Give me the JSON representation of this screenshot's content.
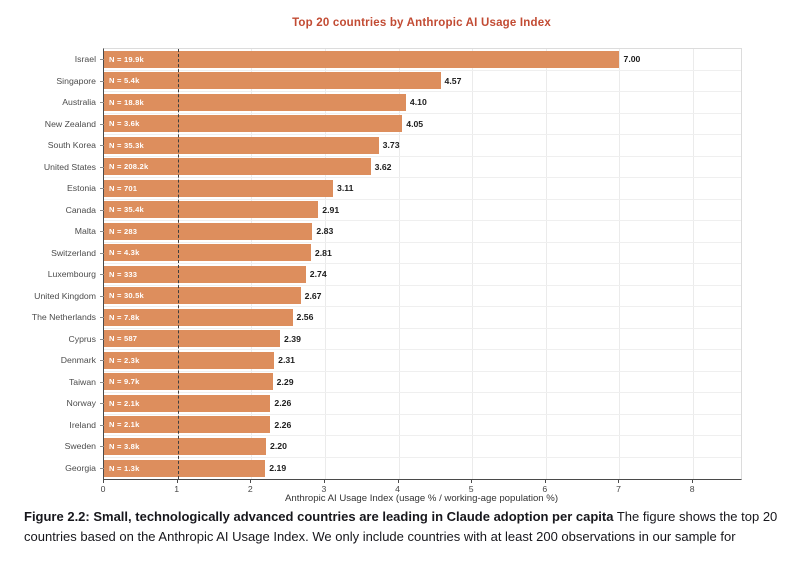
{
  "chart_data": {
    "type": "bar",
    "orientation": "horizontal",
    "title": "Top 20 countries by Anthropic AI Usage Index",
    "categories": [
      "Israel",
      "Singapore",
      "Australia",
      "New Zealand",
      "South Korea",
      "United States",
      "Estonia",
      "Canada",
      "Malta",
      "Switzerland",
      "Luxembourg",
      "United Kingdom",
      "The Netherlands",
      "Cyprus",
      "Denmark",
      "Taiwan",
      "Norway",
      "Ireland",
      "Sweden",
      "Georgia"
    ],
    "values": [
      7.0,
      4.57,
      4.1,
      4.05,
      3.73,
      3.62,
      3.11,
      2.91,
      2.83,
      2.81,
      2.74,
      2.67,
      2.56,
      2.39,
      2.31,
      2.29,
      2.26,
      2.26,
      2.2,
      2.19
    ],
    "value_labels": [
      "7.00",
      "4.57",
      "4.10",
      "4.05",
      "3.73",
      "3.62",
      "3.11",
      "2.91",
      "2.83",
      "2.81",
      "2.74",
      "2.67",
      "2.56",
      "2.39",
      "2.31",
      "2.29",
      "2.26",
      "2.26",
      "2.20",
      "2.19"
    ],
    "bar_annotations": [
      "N = 19.9k",
      "N = 5.4k",
      "N = 18.8k",
      "N = 3.6k",
      "N = 35.3k",
      "N = 208.2k",
      "N = 701",
      "N = 35.4k",
      "N = 283",
      "N = 4.3k",
      "N = 333",
      "N = 30.5k",
      "N = 7.8k",
      "N = 587",
      "N = 2.3k",
      "N = 9.7k",
      "N = 2.1k",
      "N = 2.1k",
      "N = 3.8k",
      "N = 1.3k"
    ],
    "xlabel": "Anthropic AI Usage Index (usage % / working-age population %)",
    "xticks": [
      0,
      1,
      2,
      3,
      4,
      5,
      6,
      7,
      8
    ],
    "xlim": [
      0,
      8.65
    ],
    "reference_line_x": 1,
    "grid": true,
    "legend": "none",
    "bar_color": "#DD8E5D",
    "title_color": "#C24B33"
  },
  "caption": {
    "bold": "Figure 2.2: Small, technologically advanced countries are leading in Claude adoption per capita",
    "regular": " The figure shows the top 20 countries based on the Anthropic AI Usage Index. We only include countries with at least 200 observations in our sample for"
  }
}
